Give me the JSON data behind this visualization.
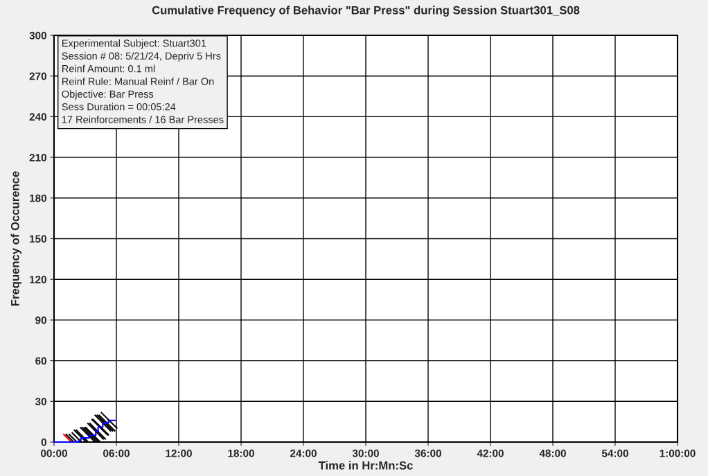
{
  "chart_data": {
    "type": "step",
    "title": "Cumulative Frequency of Behavior \"Bar Press\" during Session Stuart301_S08",
    "xlabel": "Time in Hr:Mn:Sc",
    "ylabel": "Frequency of Occurence",
    "series": [
      {
        "color": "#0000ff",
        "x": [
          0,
          2.36,
          2.58,
          3.36,
          4.02,
          4.24,
          4.69,
          5.24,
          5.91
        ],
        "values": [
          0,
          1,
          3,
          5,
          8,
          11,
          14,
          16,
          16
        ]
      },
      {
        "type": "scatter",
        "color": "#000000",
        "x": [
          1.9,
          2.2,
          2.5,
          2.7,
          2.9,
          3.3,
          3.5,
          3.7,
          3.8,
          4.0,
          4.2,
          4.4,
          4.5,
          4.7,
          4.9,
          5.1,
          5.3
        ],
        "values": [
          0,
          0,
          1,
          3,
          3,
          5,
          5,
          5,
          5,
          8,
          8,
          11,
          11,
          14,
          14,
          14,
          16
        ]
      },
      {
        "type": "scatter",
        "color": "#ff0000",
        "x": [
          1.67
        ],
        "values": [
          0
        ]
      }
    ],
    "xlim": [
      0,
      60
    ],
    "ylim": [
      0,
      300
    ],
    "xticks": [
      {
        "value": 0,
        "label": "00:00"
      },
      {
        "value": 6,
        "label": "06:00"
      },
      {
        "value": 12,
        "label": "12:00"
      },
      {
        "value": 18,
        "label": "18:00"
      },
      {
        "value": 24,
        "label": "24:00"
      },
      {
        "value": 30,
        "label": "30:00"
      },
      {
        "value": 36,
        "label": "36:00"
      },
      {
        "value": 42,
        "label": "42:00"
      },
      {
        "value": 48,
        "label": "48:00"
      },
      {
        "value": 54,
        "label": "54:00"
      },
      {
        "value": 60,
        "label": "1:00:00"
      }
    ],
    "yticks": [
      0,
      30,
      60,
      90,
      120,
      150,
      180,
      210,
      240,
      270,
      300
    ],
    "grid": true,
    "annotations": [
      "Experimental Subject: Stuart301",
      "Session # 08: 5/21/24, Depriv 5 Hrs",
      "Reinf Amount: 0.1 ml",
      "Reinf Rule: Manual Reinf / Bar On",
      "Objective: Bar Press",
      "Sess Duration = 00:05:24",
      "17 Reinforcements / 16 Bar Presses"
    ]
  }
}
